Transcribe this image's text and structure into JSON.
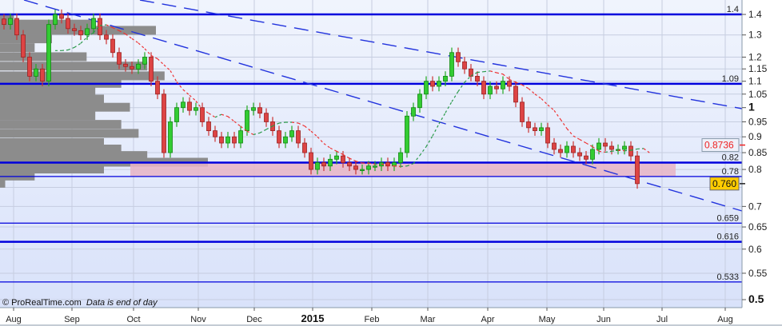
{
  "chart_data": {
    "type": "candlestick",
    "scale": "log",
    "ylim": [
      0.48,
      1.48
    ],
    "y_ticks": [
      "1.4",
      "1.3",
      "1.2",
      "1.15",
      "1.1",
      "1.05",
      "1",
      "0.95",
      "0.9",
      "0.85",
      "0.8",
      "0.7",
      "0.65",
      "0.6",
      "0.55",
      "0.5"
    ],
    "x_ticks": [
      "Aug",
      "Sep",
      "Oct",
      "Nov",
      "Dec",
      "2015",
      "Feb",
      "Mar",
      "Apr",
      "May",
      "Jun",
      "Jul",
      "Aug"
    ],
    "closes": [
      1.35,
      1.38,
      1.3,
      1.2,
      1.12,
      1.15,
      1.1,
      1.35,
      1.4,
      1.38,
      1.33,
      1.32,
      1.3,
      1.33,
      1.38,
      1.3,
      1.28,
      1.22,
      1.17,
      1.16,
      1.15,
      1.17,
      1.2,
      1.1,
      1.05,
      0.85,
      0.95,
      1.0,
      1.02,
      0.99,
      1.0,
      0.95,
      0.92,
      0.9,
      0.88,
      0.9,
      0.88,
      0.92,
      0.99,
      1.0,
      0.98,
      0.95,
      0.92,
      0.88,
      0.9,
      0.92,
      0.88,
      0.85,
      0.8,
      0.82,
      0.81,
      0.83,
      0.84,
      0.82,
      0.81,
      0.8,
      0.8,
      0.81,
      0.81,
      0.82,
      0.81,
      0.82,
      0.85,
      0.97,
      1.0,
      1.05,
      1.1,
      1.08,
      1.1,
      1.12,
      1.22,
      1.18,
      1.15,
      1.12,
      1.1,
      1.05,
      1.08,
      1.07,
      1.1,
      1.08,
      1.02,
      0.95,
      0.93,
      0.92,
      0.93,
      0.88,
      0.86,
      0.85,
      0.87,
      0.85,
      0.84,
      0.83,
      0.86,
      0.88,
      0.87,
      0.86,
      0.86,
      0.87,
      0.84,
      0.76
    ],
    "moving_average_last": "0.8736",
    "last_price": "0.760",
    "levels": [
      {
        "label": "1.4",
        "value": 1.4,
        "thick": true
      },
      {
        "label": "1.09",
        "value": 1.09,
        "thick": true
      },
      {
        "label": "0.82",
        "value": 0.82,
        "thick": true
      },
      {
        "label": "0.78",
        "value": 0.78,
        "thick": false
      },
      {
        "label": "0.659",
        "value": 0.659,
        "thick": false
      },
      {
        "label": "0.616",
        "value": 0.616,
        "thick": true
      },
      {
        "label": "0.533",
        "value": 0.533,
        "thick": false
      }
    ],
    "support_zone": [
      0.78,
      0.82
    ],
    "volume_profile": [
      {
        "price": 1.38,
        "vol": 8
      },
      {
        "price": 1.35,
        "vol": 55
      },
      {
        "price": 1.32,
        "vol": 90
      },
      {
        "price": 1.28,
        "vol": 30
      },
      {
        "price": 1.24,
        "vol": 20
      },
      {
        "price": 1.2,
        "vol": 50
      },
      {
        "price": 1.16,
        "vol": 85
      },
      {
        "price": 1.12,
        "vol": 95
      },
      {
        "price": 1.09,
        "vol": 70
      },
      {
        "price": 1.06,
        "vol": 55
      },
      {
        "price": 1.03,
        "vol": 60
      },
      {
        "price": 1.0,
        "vol": 75
      },
      {
        "price": 0.97,
        "vol": 55
      },
      {
        "price": 0.94,
        "vol": 70
      },
      {
        "price": 0.91,
        "vol": 80
      },
      {
        "price": 0.88,
        "vol": 60
      },
      {
        "price": 0.86,
        "vol": 70
      },
      {
        "price": 0.84,
        "vol": 85
      },
      {
        "price": 0.82,
        "vol": 120
      },
      {
        "price": 0.8,
        "vol": 60
      },
      {
        "price": 0.78,
        "vol": 20
      },
      {
        "price": 0.76,
        "vol": 3
      }
    ],
    "colors": {
      "up": "#22aa22",
      "down": "#cc3333",
      "level": "#0000dd",
      "trend": "#2233dd",
      "zone": "#e8b4c4",
      "profile": "#8c8c8c",
      "ma_up": "#2a9a4a",
      "ma_down": "#ee3333"
    }
  },
  "footer": {
    "credit": "© ProRealTime.com",
    "note": "Data is end of day"
  }
}
